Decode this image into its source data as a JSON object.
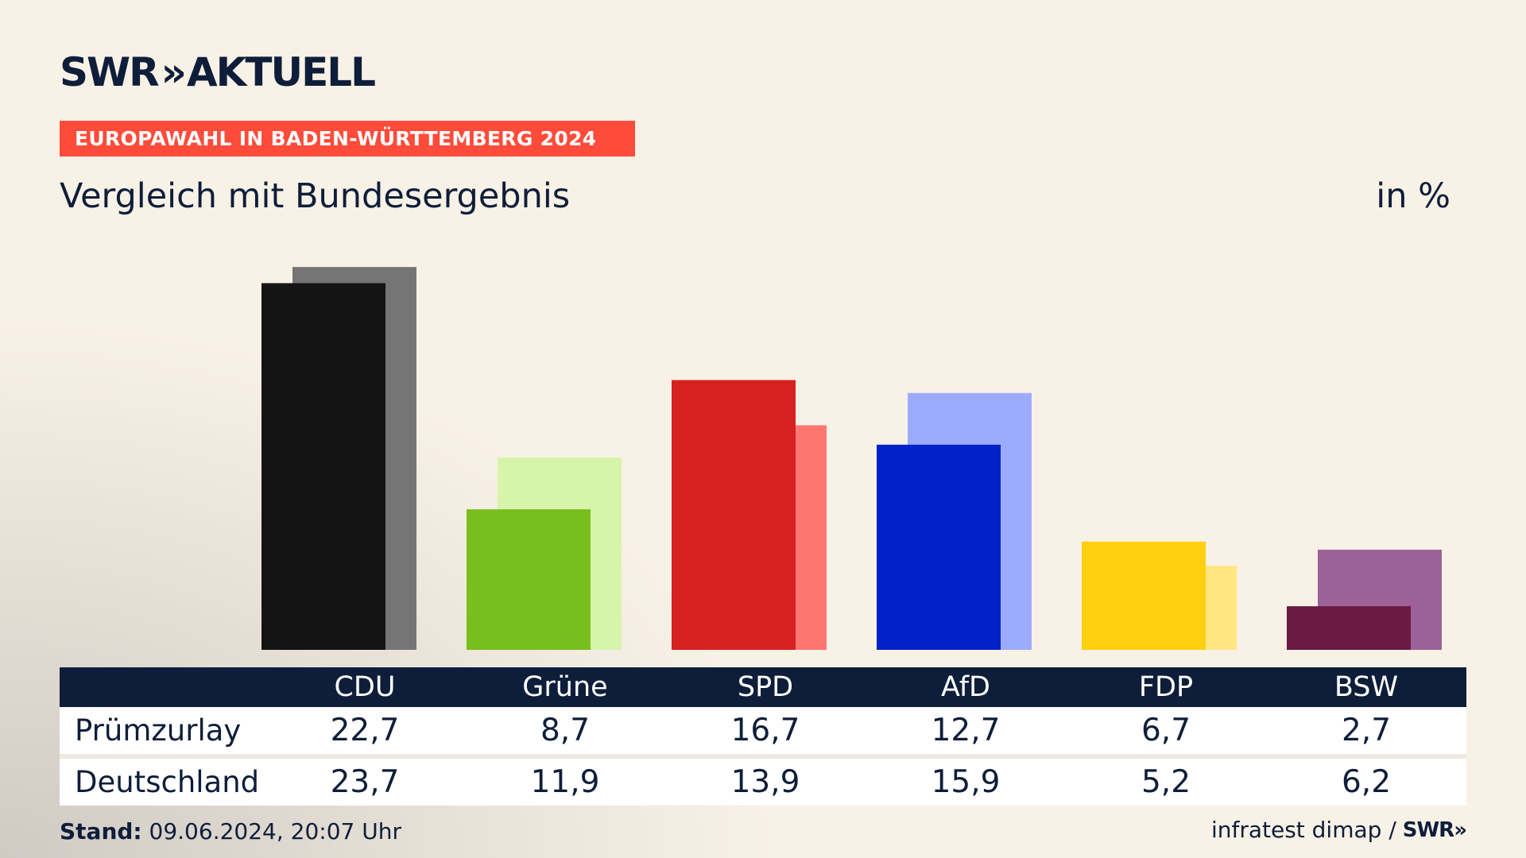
{
  "header": {
    "logo_brand": "SWR",
    "logo_chevrons": "»",
    "logo_word": "AKTUELL",
    "banner": "EUROPAWAHL IN BADEN-WÜRTTEMBERG 2024",
    "subtitle": "Vergleich mit Bundesergebnis",
    "unit": "in %"
  },
  "table": {
    "row_labels": [
      "Prümzurlay",
      "Deutschland"
    ]
  },
  "footer": {
    "stand_label": "Stand:",
    "stand_value": "09.06.2024, 20:07 Uhr",
    "source": "infratest dimap /",
    "mini_logo": "SWR»"
  },
  "chart_data": {
    "type": "bar",
    "categories": [
      "CDU",
      "Grüne",
      "SPD",
      "AfD",
      "FDP",
      "BSW"
    ],
    "series": [
      {
        "name": "Prümzurlay",
        "values": [
          22.7,
          8.7,
          16.7,
          12.7,
          6.7,
          2.7
        ],
        "labels": [
          "22,7",
          "8,7",
          "16,7",
          "12,7",
          "6,7",
          "2,7"
        ]
      },
      {
        "name": "Deutschland",
        "values": [
          23.7,
          11.9,
          13.9,
          15.9,
          5.2,
          6.2
        ],
        "labels": [
          "23,7",
          "11,9",
          "13,9",
          "15,9",
          "5,2",
          "6,2"
        ]
      }
    ],
    "colors_primary": [
      "#141414",
      "#78be1e",
      "#d72020",
      "#0022c8",
      "#ffd010",
      "#6b1a42"
    ],
    "colors_secondary": [
      "#757575",
      "#d6f5ab",
      "#ff7570",
      "#9dabff",
      "#ffe680",
      "#9d6199"
    ],
    "ylim": [
      0,
      24
    ],
    "grid": false,
    "legend": "table-below"
  }
}
